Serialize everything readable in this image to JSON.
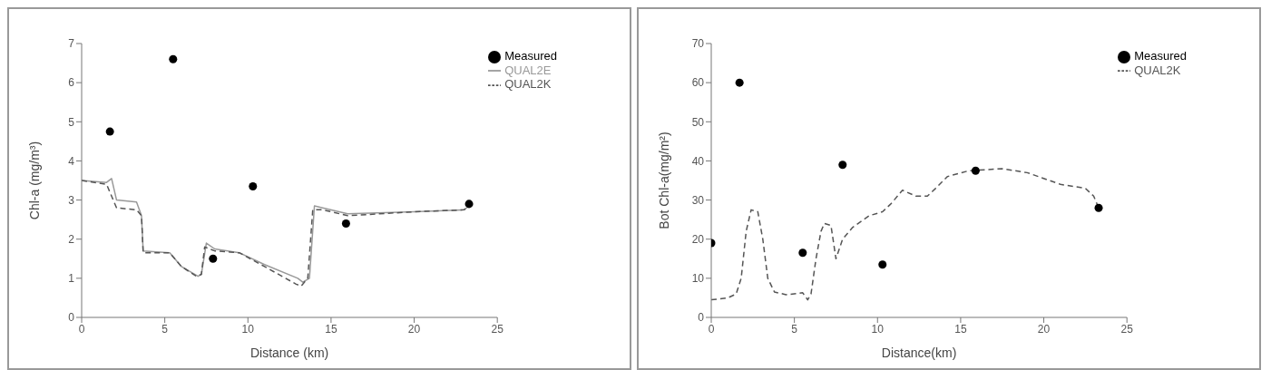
{
  "chart_data": [
    {
      "type": "scatter",
      "xlabel": "Distance (km)",
      "ylabel": "Chl-a (mg/m³)",
      "xlim": [
        0,
        25
      ],
      "xticks": [
        0,
        5,
        10,
        15,
        20,
        25
      ],
      "ylim": [
        0,
        7
      ],
      "yticks": [
        0,
        1,
        2,
        3,
        4,
        5,
        6,
        7
      ],
      "legend": "top right",
      "series": [
        {
          "name": "Measured",
          "marker": "circle",
          "color": "#000000",
          "x": [
            1.7,
            5.5,
            7.9,
            10.3,
            15.9,
            23.3
          ],
          "values": [
            4.75,
            6.6,
            1.5,
            3.35,
            2.4,
            2.9
          ]
        },
        {
          "name": "QUAL2E",
          "type": "line",
          "marker": "none",
          "line_style": "solid",
          "color": "#999999",
          "x": [
            0,
            1.5,
            1.8,
            2.1,
            3.3,
            3.6,
            3.7,
            5.3,
            6.0,
            7.0,
            7.2,
            7.5,
            8.0,
            9.5,
            11,
            13,
            13.3,
            13.7,
            14.0,
            14.5,
            16,
            20,
            23,
            23.3
          ],
          "values": [
            3.5,
            3.45,
            3.55,
            3.0,
            2.95,
            2.6,
            1.7,
            1.65,
            1.3,
            1.05,
            1.1,
            1.9,
            1.75,
            1.65,
            1.35,
            1.0,
            0.9,
            1.0,
            2.85,
            2.8,
            2.65,
            2.7,
            2.75,
            2.85
          ]
        },
        {
          "name": "QUAL2K",
          "type": "line",
          "marker": "none",
          "line_style": "dashed",
          "color": "#555555",
          "x": [
            0,
            1.5,
            2.1,
            3.3,
            3.6,
            3.7,
            5.3,
            6,
            6.9,
            7.2,
            7.4,
            8,
            9.5,
            11,
            12.9,
            13.2,
            13.6,
            13.9,
            14.5,
            16,
            20,
            23,
            23.3
          ],
          "values": [
            3.5,
            3.4,
            2.8,
            2.75,
            2.6,
            1.65,
            1.65,
            1.3,
            1.05,
            1.1,
            1.8,
            1.7,
            1.65,
            1.3,
            0.85,
            0.8,
            1.0,
            2.75,
            2.75,
            2.6,
            2.7,
            2.75,
            2.85
          ]
        }
      ]
    },
    {
      "type": "scatter",
      "xlabel": "Distance(km)",
      "ylabel": "Bot Chl-a(mg/m²)",
      "xlim": [
        0,
        25
      ],
      "xticks": [
        0,
        5,
        10,
        15,
        20,
        25
      ],
      "ylim": [
        0,
        70
      ],
      "yticks": [
        0,
        10,
        20,
        30,
        40,
        50,
        60,
        70
      ],
      "legend": "top right",
      "series": [
        {
          "name": "Measured",
          "marker": "circle",
          "color": "#000000",
          "x": [
            0,
            1.7,
            5.5,
            7.9,
            10.3,
            15.9,
            23.3
          ],
          "values": [
            19,
            60,
            16.5,
            39,
            13.5,
            37.5,
            28
          ]
        },
        {
          "name": "QUAL2K",
          "type": "line",
          "marker": "none",
          "line_style": "dashed",
          "color": "#555555",
          "x": [
            0,
            1,
            1.5,
            1.8,
            2.1,
            2.4,
            2.8,
            3.1,
            3.4,
            3.8,
            4.5,
            5.5,
            5.8,
            6.0,
            6.3,
            6.6,
            6.8,
            7.2,
            7.5,
            7.9,
            8.5,
            9.5,
            10.3,
            10.8,
            11.5,
            12.3,
            13,
            13.5,
            14.2,
            15.5,
            17.5,
            19,
            21,
            22.5,
            23,
            23.3
          ],
          "values": [
            4.5,
            5,
            6,
            10,
            22,
            27.5,
            27,
            20,
            10,
            6.5,
            5.8,
            6.3,
            4.5,
            6,
            15,
            22,
            24,
            23.5,
            15,
            20,
            23,
            26,
            27,
            29,
            32.5,
            31,
            31,
            33,
            36,
            37.5,
            38,
            37,
            34,
            33,
            31,
            28
          ]
        }
      ]
    }
  ]
}
